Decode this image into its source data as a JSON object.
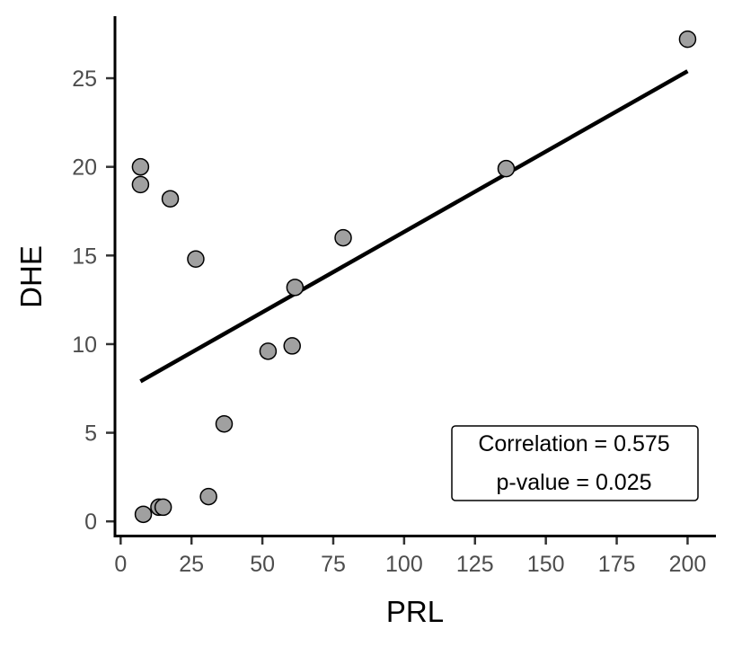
{
  "chart_data": {
    "type": "scatter",
    "xlabel": "PRL",
    "ylabel": "DHE",
    "xlim": [
      -2,
      210
    ],
    "ylim": [
      -0.8,
      28.5
    ],
    "x_ticks": [
      0,
      25,
      50,
      75,
      100,
      125,
      150,
      175,
      200
    ],
    "y_ticks": [
      0,
      5,
      10,
      15,
      20,
      25
    ],
    "grid": false,
    "legend": "none",
    "point_color": "#a0a0a0",
    "line_color": "#000000",
    "points": [
      {
        "x": 7,
        "y": 20.0
      },
      {
        "x": 7,
        "y": 19.0
      },
      {
        "x": 17.5,
        "y": 18.2
      },
      {
        "x": 26.5,
        "y": 14.8
      },
      {
        "x": 8,
        "y": 0.4
      },
      {
        "x": 13.5,
        "y": 0.8
      },
      {
        "x": 15,
        "y": 0.8
      },
      {
        "x": 31,
        "y": 1.4
      },
      {
        "x": 36.5,
        "y": 5.5
      },
      {
        "x": 52,
        "y": 9.6
      },
      {
        "x": 60.5,
        "y": 9.9
      },
      {
        "x": 61.5,
        "y": 13.2
      },
      {
        "x": 78.5,
        "y": 16.0
      },
      {
        "x": 136,
        "y": 19.9
      },
      {
        "x": 200,
        "y": 27.2
      }
    ],
    "fit_line": {
      "x": [
        7,
        200
      ],
      "y": [
        7.9,
        25.4
      ]
    },
    "annotation": {
      "line1": "Correlation = 0.575",
      "line2": "p-value = 0.025",
      "position": "bottom-right"
    }
  }
}
